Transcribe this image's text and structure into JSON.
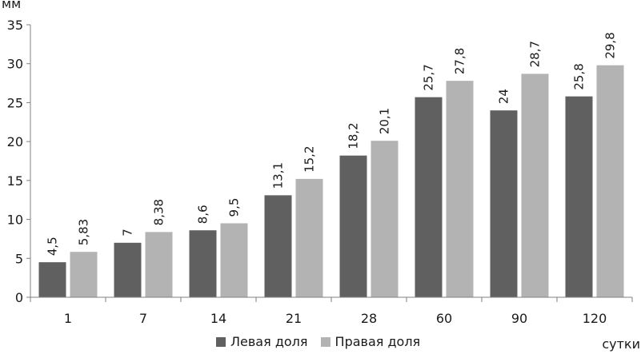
{
  "chart_data": {
    "type": "bar",
    "categories": [
      "1",
      "7",
      "14",
      "21",
      "28",
      "60",
      "90",
      "120"
    ],
    "series": [
      {
        "name": "Левая доля",
        "values": [
          4.5,
          7,
          8.6,
          13.1,
          18.2,
          25.7,
          24,
          25.8
        ],
        "labels": [
          "4,5",
          "7",
          "8,6",
          "13,1",
          "18,2",
          "25,7",
          "24",
          "25,8"
        ],
        "color": "#606060"
      },
      {
        "name": "Правая доля",
        "values": [
          5.83,
          8.38,
          9.5,
          15.2,
          20.1,
          27.8,
          28.7,
          29.8
        ],
        "labels": [
          "5,83",
          "8,38",
          "9,5",
          "15,2",
          "20,1",
          "27,8",
          "28,7",
          "29,8"
        ],
        "color": "#b3b3b3"
      }
    ],
    "ylabel": "мм",
    "xlabel": "сутки",
    "ylim": [
      0,
      35
    ],
    "yticks": [
      0,
      5,
      10,
      15,
      20,
      25,
      30,
      35
    ],
    "grid": false,
    "legend_position": "bottom"
  }
}
